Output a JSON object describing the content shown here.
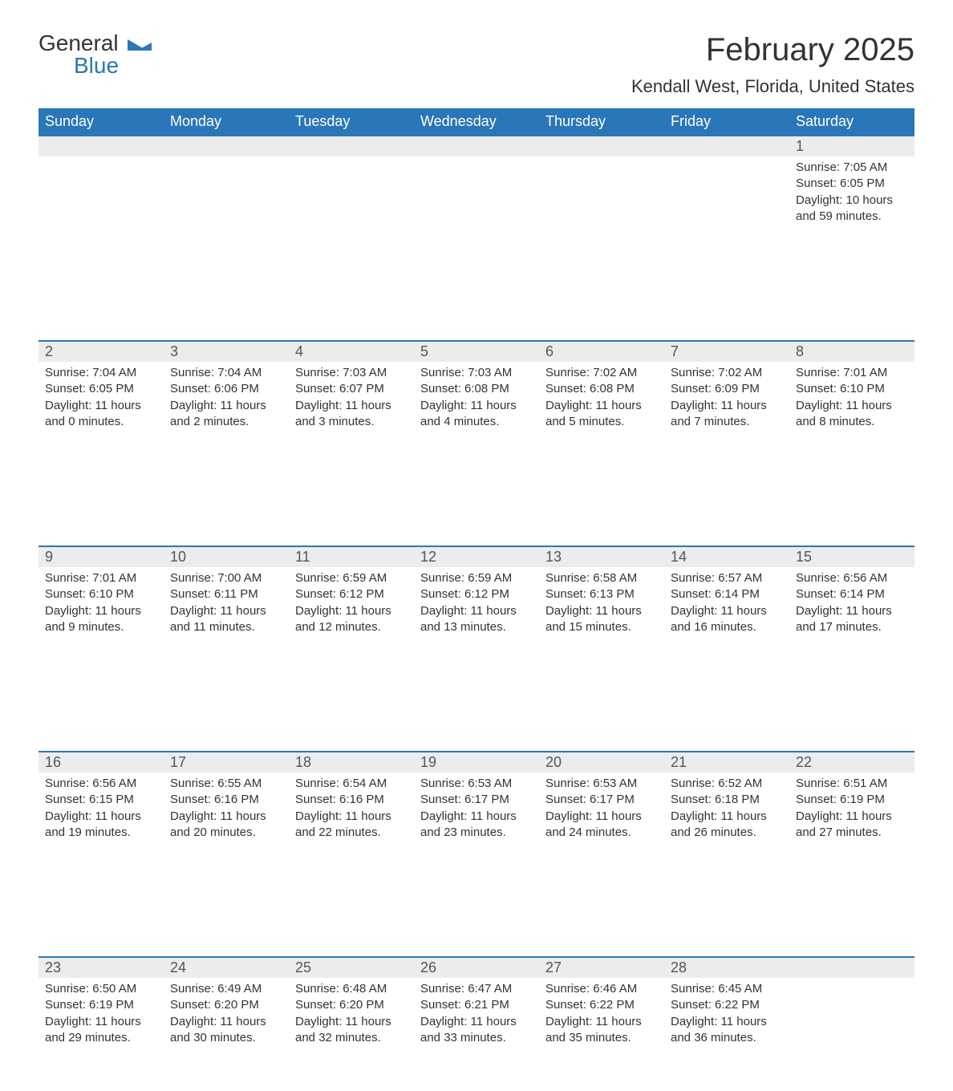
{
  "logo": {
    "text1": "General",
    "text2": "Blue"
  },
  "title": "February 2025",
  "location": "Kendall West, Florida, United States",
  "weekdays": [
    "Sunday",
    "Monday",
    "Tuesday",
    "Wednesday",
    "Thursday",
    "Friday",
    "Saturday"
  ],
  "colors": {
    "header_bg": "#2a76b8",
    "header_fg": "#ffffff",
    "daynum_bg": "#ececec",
    "border_top": "#2a76b8",
    "text": "#333333"
  },
  "weeks": [
    [
      null,
      null,
      null,
      null,
      null,
      null,
      {
        "n": "1",
        "sr": "7:05 AM",
        "ss": "6:05 PM",
        "dh": "10",
        "dm": "59"
      }
    ],
    [
      {
        "n": "2",
        "sr": "7:04 AM",
        "ss": "6:05 PM",
        "dh": "11",
        "dm": "0"
      },
      {
        "n": "3",
        "sr": "7:04 AM",
        "ss": "6:06 PM",
        "dh": "11",
        "dm": "2"
      },
      {
        "n": "4",
        "sr": "7:03 AM",
        "ss": "6:07 PM",
        "dh": "11",
        "dm": "3"
      },
      {
        "n": "5",
        "sr": "7:03 AM",
        "ss": "6:08 PM",
        "dh": "11",
        "dm": "4"
      },
      {
        "n": "6",
        "sr": "7:02 AM",
        "ss": "6:08 PM",
        "dh": "11",
        "dm": "5"
      },
      {
        "n": "7",
        "sr": "7:02 AM",
        "ss": "6:09 PM",
        "dh": "11",
        "dm": "7"
      },
      {
        "n": "8",
        "sr": "7:01 AM",
        "ss": "6:10 PM",
        "dh": "11",
        "dm": "8"
      }
    ],
    [
      {
        "n": "9",
        "sr": "7:01 AM",
        "ss": "6:10 PM",
        "dh": "11",
        "dm": "9"
      },
      {
        "n": "10",
        "sr": "7:00 AM",
        "ss": "6:11 PM",
        "dh": "11",
        "dm": "11"
      },
      {
        "n": "11",
        "sr": "6:59 AM",
        "ss": "6:12 PM",
        "dh": "11",
        "dm": "12"
      },
      {
        "n": "12",
        "sr": "6:59 AM",
        "ss": "6:12 PM",
        "dh": "11",
        "dm": "13"
      },
      {
        "n": "13",
        "sr": "6:58 AM",
        "ss": "6:13 PM",
        "dh": "11",
        "dm": "15"
      },
      {
        "n": "14",
        "sr": "6:57 AM",
        "ss": "6:14 PM",
        "dh": "11",
        "dm": "16"
      },
      {
        "n": "15",
        "sr": "6:56 AM",
        "ss": "6:14 PM",
        "dh": "11",
        "dm": "17"
      }
    ],
    [
      {
        "n": "16",
        "sr": "6:56 AM",
        "ss": "6:15 PM",
        "dh": "11",
        "dm": "19"
      },
      {
        "n": "17",
        "sr": "6:55 AM",
        "ss": "6:16 PM",
        "dh": "11",
        "dm": "20"
      },
      {
        "n": "18",
        "sr": "6:54 AM",
        "ss": "6:16 PM",
        "dh": "11",
        "dm": "22"
      },
      {
        "n": "19",
        "sr": "6:53 AM",
        "ss": "6:17 PM",
        "dh": "11",
        "dm": "23"
      },
      {
        "n": "20",
        "sr": "6:53 AM",
        "ss": "6:17 PM",
        "dh": "11",
        "dm": "24"
      },
      {
        "n": "21",
        "sr": "6:52 AM",
        "ss": "6:18 PM",
        "dh": "11",
        "dm": "26"
      },
      {
        "n": "22",
        "sr": "6:51 AM",
        "ss": "6:19 PM",
        "dh": "11",
        "dm": "27"
      }
    ],
    [
      {
        "n": "23",
        "sr": "6:50 AM",
        "ss": "6:19 PM",
        "dh": "11",
        "dm": "29"
      },
      {
        "n": "24",
        "sr": "6:49 AM",
        "ss": "6:20 PM",
        "dh": "11",
        "dm": "30"
      },
      {
        "n": "25",
        "sr": "6:48 AM",
        "ss": "6:20 PM",
        "dh": "11",
        "dm": "32"
      },
      {
        "n": "26",
        "sr": "6:47 AM",
        "ss": "6:21 PM",
        "dh": "11",
        "dm": "33"
      },
      {
        "n": "27",
        "sr": "6:46 AM",
        "ss": "6:22 PM",
        "dh": "11",
        "dm": "35"
      },
      {
        "n": "28",
        "sr": "6:45 AM",
        "ss": "6:22 PM",
        "dh": "11",
        "dm": "36"
      },
      null
    ]
  ],
  "labels": {
    "sunrise": "Sunrise: ",
    "sunset": "Sunset: ",
    "daylight1": "Daylight: ",
    "daylight2": " hours and ",
    "daylight3": " minutes."
  }
}
